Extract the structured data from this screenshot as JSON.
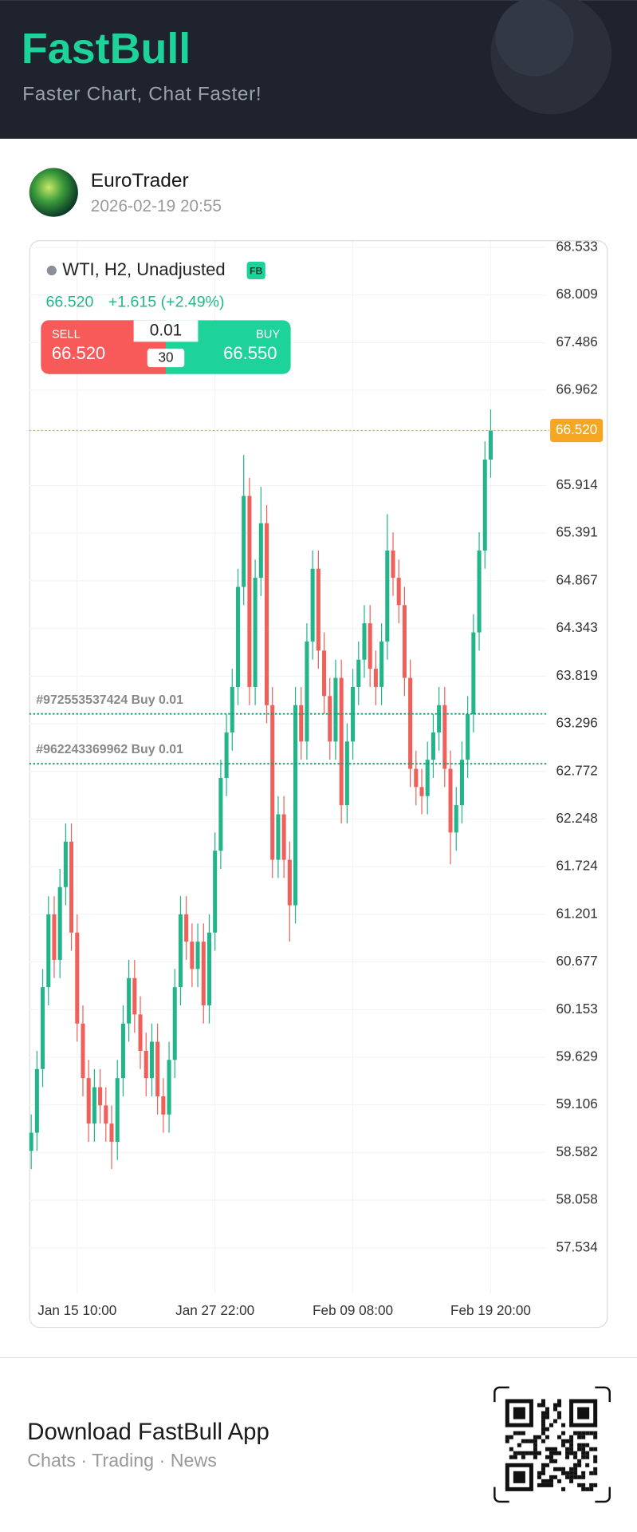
{
  "header": {
    "brand": "FastBull",
    "tagline": "Faster Chart, Chat Faster!"
  },
  "post": {
    "author": "EuroTrader",
    "time": "2026-02-19 20:55"
  },
  "chart_data": {
    "type": "candlestick",
    "symbol": "WTI, H2, Unadjusted",
    "badge": "FB",
    "price": "66.520",
    "change": "+1.615 (+2.49%)",
    "sell_label": "SELL",
    "sell_price": "66.520",
    "buy_label": "BUY",
    "buy_price": "66.550",
    "lot": "0.01",
    "spread": "30",
    "up_color": "#22b58a",
    "down_color": "#f0605a",
    "grid": true,
    "categories": [
      null,
      null,
      null,
      null,
      null,
      null,
      null,
      null,
      "Jan 15 10:00",
      null,
      null,
      null,
      null,
      null,
      null,
      null,
      null,
      null,
      null,
      null,
      null,
      null,
      null,
      null,
      null,
      null,
      null,
      null,
      null,
      null,
      null,
      null,
      "Jan 27 22:00",
      null,
      null,
      null,
      null,
      null,
      null,
      null,
      null,
      null,
      null,
      null,
      null,
      null,
      null,
      null,
      null,
      null,
      null,
      null,
      null,
      null,
      null,
      null,
      "Feb 09 08:00",
      null,
      null,
      null,
      null,
      null,
      null,
      null,
      null,
      null,
      null,
      null,
      null,
      null,
      null,
      null,
      null,
      null,
      null,
      null,
      null,
      null,
      null,
      null,
      "Feb 19 20:00"
    ],
    "open": [
      58.6,
      58.8,
      59.5,
      60.4,
      61.2,
      60.7,
      61.5,
      62.0,
      61.0,
      60.0,
      59.4,
      58.9,
      59.3,
      59.1,
      58.9,
      58.7,
      59.4,
      60.0,
      60.5,
      60.1,
      59.7,
      59.4,
      59.8,
      59.2,
      59.0,
      59.6,
      60.4,
      61.2,
      60.9,
      60.6,
      60.9,
      60.2,
      61.0,
      61.9,
      62.7,
      63.2,
      63.7,
      64.8,
      65.8,
      63.7,
      64.9,
      65.5,
      63.5,
      61.8,
      62.3,
      61.8,
      61.3,
      63.5,
      63.1,
      64.2,
      65.0,
      64.1,
      63.6,
      63.1,
      63.8,
      62.4,
      63.1,
      63.7,
      64.0,
      64.4,
      63.9,
      63.7,
      64.2,
      65.2,
      64.9,
      64.6,
      63.8,
      62.8,
      62.6,
      62.5,
      62.9,
      63.2,
      63.5,
      62.8,
      62.1,
      62.4,
      62.9,
      63.4,
      64.3,
      65.2,
      66.2
    ],
    "high": [
      59.0,
      59.7,
      60.6,
      61.4,
      61.4,
      61.7,
      62.2,
      62.2,
      61.2,
      60.2,
      59.6,
      59.5,
      59.5,
      59.3,
      59.1,
      59.6,
      60.2,
      60.7,
      60.7,
      60.3,
      59.9,
      60.0,
      60.0,
      59.4,
      59.8,
      60.6,
      61.4,
      61.4,
      61.1,
      61.1,
      61.1,
      61.2,
      62.1,
      62.9,
      63.4,
      63.9,
      65.0,
      66.25,
      66.0,
      65.1,
      65.9,
      65.7,
      63.7,
      62.5,
      62.5,
      62.0,
      63.7,
      63.7,
      64.4,
      65.2,
      65.2,
      64.3,
      63.8,
      64.0,
      64.0,
      63.3,
      63.9,
      64.2,
      64.6,
      64.6,
      64.1,
      64.4,
      65.6,
      65.4,
      65.1,
      64.8,
      64.0,
      63.0,
      62.8,
      63.1,
      63.4,
      63.7,
      63.7,
      63.0,
      62.6,
      63.1,
      63.6,
      64.5,
      65.4,
      66.4,
      66.75
    ],
    "low": [
      58.4,
      58.6,
      59.3,
      60.2,
      60.5,
      60.5,
      61.3,
      60.8,
      59.8,
      59.2,
      58.7,
      58.7,
      58.9,
      58.7,
      58.4,
      58.5,
      59.2,
      59.8,
      59.9,
      59.5,
      59.2,
      59.2,
      59.0,
      58.8,
      58.8,
      59.4,
      60.2,
      60.7,
      60.4,
      60.4,
      60.0,
      60.0,
      60.8,
      61.7,
      62.5,
      63.0,
      63.5,
      64.6,
      63.5,
      63.5,
      64.7,
      63.3,
      61.6,
      61.6,
      61.6,
      60.9,
      61.1,
      62.9,
      62.9,
      64.0,
      63.9,
      63.4,
      62.9,
      62.9,
      62.2,
      62.2,
      62.9,
      63.5,
      63.8,
      63.7,
      63.5,
      63.5,
      64.0,
      64.7,
      64.4,
      63.6,
      62.6,
      62.4,
      62.3,
      62.3,
      62.7,
      63.0,
      62.6,
      61.75,
      61.9,
      62.2,
      62.7,
      63.2,
      64.1,
      65.0,
      66.0
    ],
    "close": [
      58.8,
      59.5,
      60.4,
      61.2,
      60.7,
      61.5,
      62.0,
      61.0,
      60.0,
      59.4,
      58.9,
      59.3,
      59.1,
      58.9,
      58.7,
      59.4,
      60.0,
      60.5,
      60.1,
      59.7,
      59.4,
      59.8,
      59.2,
      59.0,
      59.6,
      60.4,
      61.2,
      60.9,
      60.6,
      60.9,
      60.2,
      61.0,
      61.9,
      62.7,
      63.2,
      63.7,
      64.8,
      65.8,
      63.7,
      64.9,
      65.5,
      63.5,
      61.8,
      62.3,
      61.8,
      61.3,
      63.5,
      63.1,
      64.2,
      65.0,
      64.1,
      63.6,
      63.1,
      63.8,
      62.4,
      63.1,
      63.7,
      64.0,
      64.4,
      63.9,
      63.7,
      64.2,
      65.2,
      64.9,
      64.6,
      63.8,
      62.8,
      62.6,
      62.5,
      62.9,
      63.2,
      63.5,
      62.8,
      62.1,
      62.4,
      62.9,
      63.4,
      64.3,
      65.2,
      66.2,
      66.52
    ],
    "ylim": [
      57.03,
      68.6
    ],
    "yticks": [
      68.533,
      68.009,
      67.486,
      66.962,
      65.914,
      65.391,
      64.867,
      64.343,
      63.819,
      63.296,
      62.772,
      62.248,
      61.724,
      61.201,
      60.677,
      60.153,
      59.629,
      59.106,
      58.582,
      58.058,
      57.534
    ],
    "last_price": {
      "value": 66.52,
      "label": "66.520"
    },
    "orders": [
      {
        "label": "#972553537424 Buy 0.01",
        "price": 63.404
      },
      {
        "label": "#962243369962 Buy 0.01",
        "price": 62.856
      }
    ]
  },
  "footer": {
    "title": "Download FastBull App",
    "subtitle": "Chats · Trading · News"
  }
}
